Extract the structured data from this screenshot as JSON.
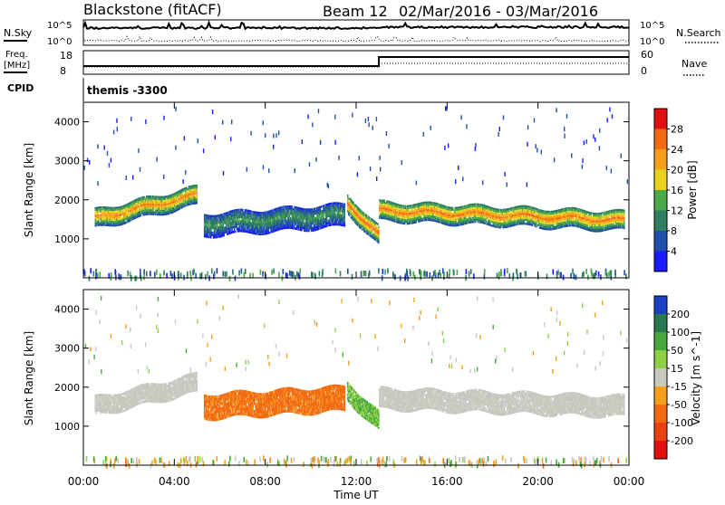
{
  "header": {
    "station": "Blackstone (fitACF)",
    "beam": "Beam 12",
    "date_range": "02/Mar/2016 - 03/Mar/2016"
  },
  "status_panels": {
    "nsky_label": "N.Sky",
    "nsearch_label": "N.Search",
    "noise_tick_top": "10^5",
    "noise_tick_bottom": "10^0",
    "freq_label_line1": "Freq.",
    "freq_label_line2": "[MHz]",
    "freq_tick_top": "18",
    "freq_tick_bottom": "8",
    "nave_label": "Nave",
    "nave_tick_top": "60",
    "nave_tick_bottom": "0",
    "cpid_label": "CPID",
    "cpid_text": "themis -3300"
  },
  "chart_data": [
    {
      "type": "heatmap",
      "panel": "power",
      "ylabel": "Slant Range [km]",
      "xlabel": "Time UT",
      "ylim": [
        0,
        4500
      ],
      "yticks": [
        1000,
        2000,
        3000,
        4000
      ],
      "xlim": [
        "00:00",
        "24:00"
      ],
      "xticks": [
        "00:00",
        "04:00",
        "08:00",
        "12:00",
        "16:00",
        "20:00",
        "00:00"
      ],
      "colorbar": {
        "label": "Power [dB]",
        "ticks": [
          4,
          8,
          12,
          16,
          20,
          24,
          28
        ],
        "colors": [
          "#1a1aff",
          "#1f4faa",
          "#2f7f60",
          "#4aa94a",
          "#e8d21e",
          "#f5a01a",
          "#f26a12",
          "#e01010"
        ]
      },
      "bands": [
        {
          "t0": 0.5,
          "t1": 5.0,
          "center_start": 1500,
          "center_end": 2100,
          "width": 500,
          "power": 24
        },
        {
          "t0": 5.3,
          "t1": 11.5,
          "center_start": 1350,
          "center_end": 1600,
          "width": 600,
          "power": 12
        },
        {
          "t0": 11.6,
          "t1": 13.0,
          "center_start": 1900,
          "center_end": 1050,
          "width": 500,
          "power": 26
        },
        {
          "t0": 13.0,
          "t1": 23.8,
          "center_start": 1700,
          "center_end": 1450,
          "width": 500,
          "power": 25
        }
      ]
    },
    {
      "type": "heatmap",
      "panel": "velocity",
      "ylabel": "Slant Range [km]",
      "xlabel": "Time UT",
      "ylim": [
        0,
        4500
      ],
      "yticks": [
        1000,
        2000,
        3000,
        4000
      ],
      "xlim": [
        "00:00",
        "24:00"
      ],
      "xticks": [
        "00:00",
        "04:00",
        "08:00",
        "12:00",
        "16:00",
        "20:00",
        "00:00"
      ],
      "colorbar": {
        "label": "Velocity [m s^-1]",
        "ticks": [
          "200",
          "100",
          "50",
          "15",
          "-15",
          "-50",
          "-100",
          "-200"
        ],
        "colors": [
          "#1a3fc0",
          "#2a7a50",
          "#46a83c",
          "#8fd046",
          "#c8c8c0",
          "#f5a01a",
          "#f26a12",
          "#e8420e",
          "#e01010"
        ]
      },
      "bands": [
        {
          "t0": 0.5,
          "t1": 5.0,
          "center_start": 1500,
          "center_end": 2100,
          "width": 500,
          "velocity": 0
        },
        {
          "t0": 5.3,
          "t1": 11.5,
          "center_start": 1500,
          "center_end": 1700,
          "width": 650,
          "velocity": -60
        },
        {
          "t0": 11.6,
          "t1": 13.0,
          "center_start": 1900,
          "center_end": 1100,
          "width": 500,
          "velocity": 30
        },
        {
          "t0": 13.0,
          "t1": 23.8,
          "center_start": 1700,
          "center_end": 1500,
          "width": 550,
          "velocity": 0
        }
      ]
    }
  ]
}
